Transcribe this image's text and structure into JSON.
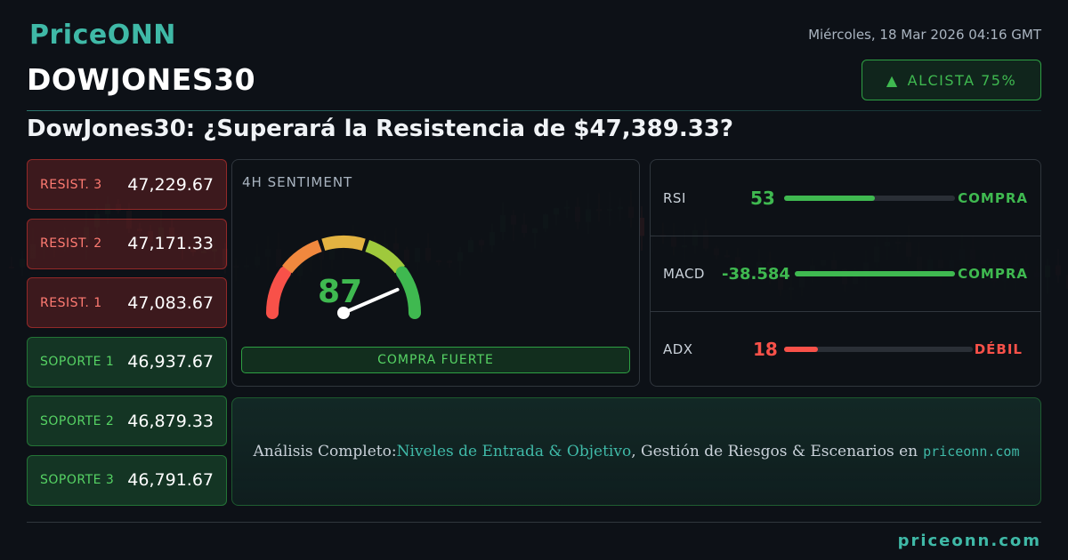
{
  "brand": {
    "logo": "PriceONN"
  },
  "header": {
    "datetime": "Miércoles, 18 Mar 2026 04:16 GMT",
    "symbol": "DOWJONES30",
    "bias_label": "ALCISTA 75%",
    "bias_icon": "triangle-up-icon",
    "headline": "DowJones30: ¿Superará la Resistencia de $47,389.33?"
  },
  "levels": [
    {
      "name": "RESIST. 3",
      "value": "47,229.67",
      "kind": "resistance"
    },
    {
      "name": "RESIST. 2",
      "value": "47,171.33",
      "kind": "resistance"
    },
    {
      "name": "RESIST. 1",
      "value": "47,083.67",
      "kind": "resistance"
    },
    {
      "name": "SOPORTE 1",
      "value": "46,937.67",
      "kind": "support"
    },
    {
      "name": "SOPORTE 2",
      "value": "46,879.33",
      "kind": "support"
    },
    {
      "name": "SOPORTE 3",
      "value": "46,791.67",
      "kind": "support"
    }
  ],
  "sentiment": {
    "title": "4H SENTIMENT",
    "value": "87",
    "value_number": 87,
    "label": "COMPRA FUERTE"
  },
  "indicators": [
    {
      "name": "RSI",
      "value": "53",
      "fill_fraction": 0.53,
      "signal": "COMPRA",
      "color": "#3fb950"
    },
    {
      "name": "MACD",
      "value": "-38.584",
      "fill_fraction": 1.0,
      "signal": "COMPRA",
      "color": "#3fb950"
    },
    {
      "name": "ADX",
      "value": "18",
      "fill_fraction": 0.18,
      "signal": "DÉBIL",
      "color": "#f85149"
    }
  ],
  "cta": {
    "prefix": "Análisis Completo: ",
    "highlight": "Niveles de Entrada & Objetivo",
    "middle": ", Gestión de Riesgos & Escenarios en",
    "site": "priceonn.com"
  },
  "footer": {
    "site": "priceonn.com"
  },
  "colors": {
    "accent": "#3fb9a7",
    "bullish": "#3fb950",
    "bearish": "#f85149"
  }
}
